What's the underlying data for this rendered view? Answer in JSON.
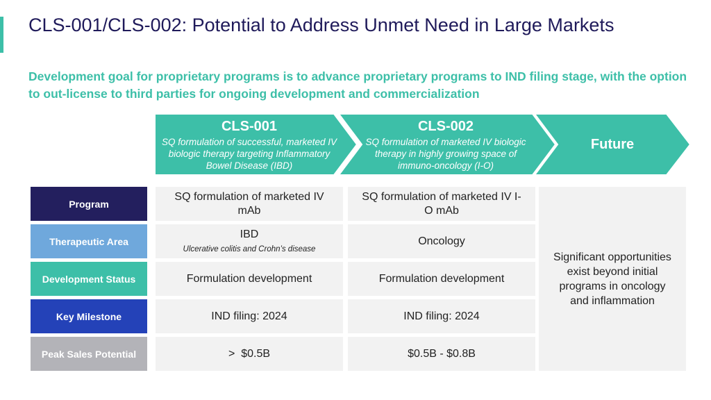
{
  "slide": {
    "title": "CLS-001/CLS-002: Potential to Address Unmet Need in Large Markets",
    "subtitle": "Development goal for proprietary programs is to advance proprietary programs to IND filing stage, with the option to out-license to third parties for ongoing development and commercialization"
  },
  "pipeline": [
    {
      "name": "CLS-001",
      "description": "SQ formulation of successful, marketed IV biologic therapy targeting Inflammatory Bowel Disease (IBD)"
    },
    {
      "name": "CLS-002",
      "description": "SQ formulation of marketed IV biologic therapy in highly growing space of immuno-oncology (I-O)"
    },
    {
      "name": "Future",
      "description": ""
    }
  ],
  "rows": [
    {
      "label": "Program",
      "color": "#231f5e",
      "cls001": "SQ formulation of marketed IV mAb",
      "cls001_note": "",
      "cls002": "SQ formulation of marketed IV I-O mAb"
    },
    {
      "label": "Therapeutic Area",
      "color": "#6fa8dc",
      "cls001": "IBD",
      "cls001_note": "Ulcerative colitis and Crohn’s disease",
      "cls002": "Oncology"
    },
    {
      "label": "Development Status",
      "color": "#3dbfa8",
      "cls001": "Formulation development",
      "cls001_note": "",
      "cls002": "Formulation development"
    },
    {
      "label": "Key Milestone",
      "color": "#2442b8",
      "cls001": "IND filing: 2024",
      "cls001_note": "",
      "cls002": "IND filing: 2024"
    },
    {
      "label": "Peak Sales Potential",
      "color": "#b3b3b8",
      "cls001": ">  $0.5B",
      "cls001_note": "",
      "cls002": "$0.5B - $0.8B"
    }
  ],
  "future": {
    "text": "Significant opportunities exist beyond initial programs in oncology and inflammation"
  },
  "colors": {
    "teal": "#3dbfa8",
    "navy_title": "#1f1a5a",
    "cell_bg": "#f2f2f2"
  }
}
